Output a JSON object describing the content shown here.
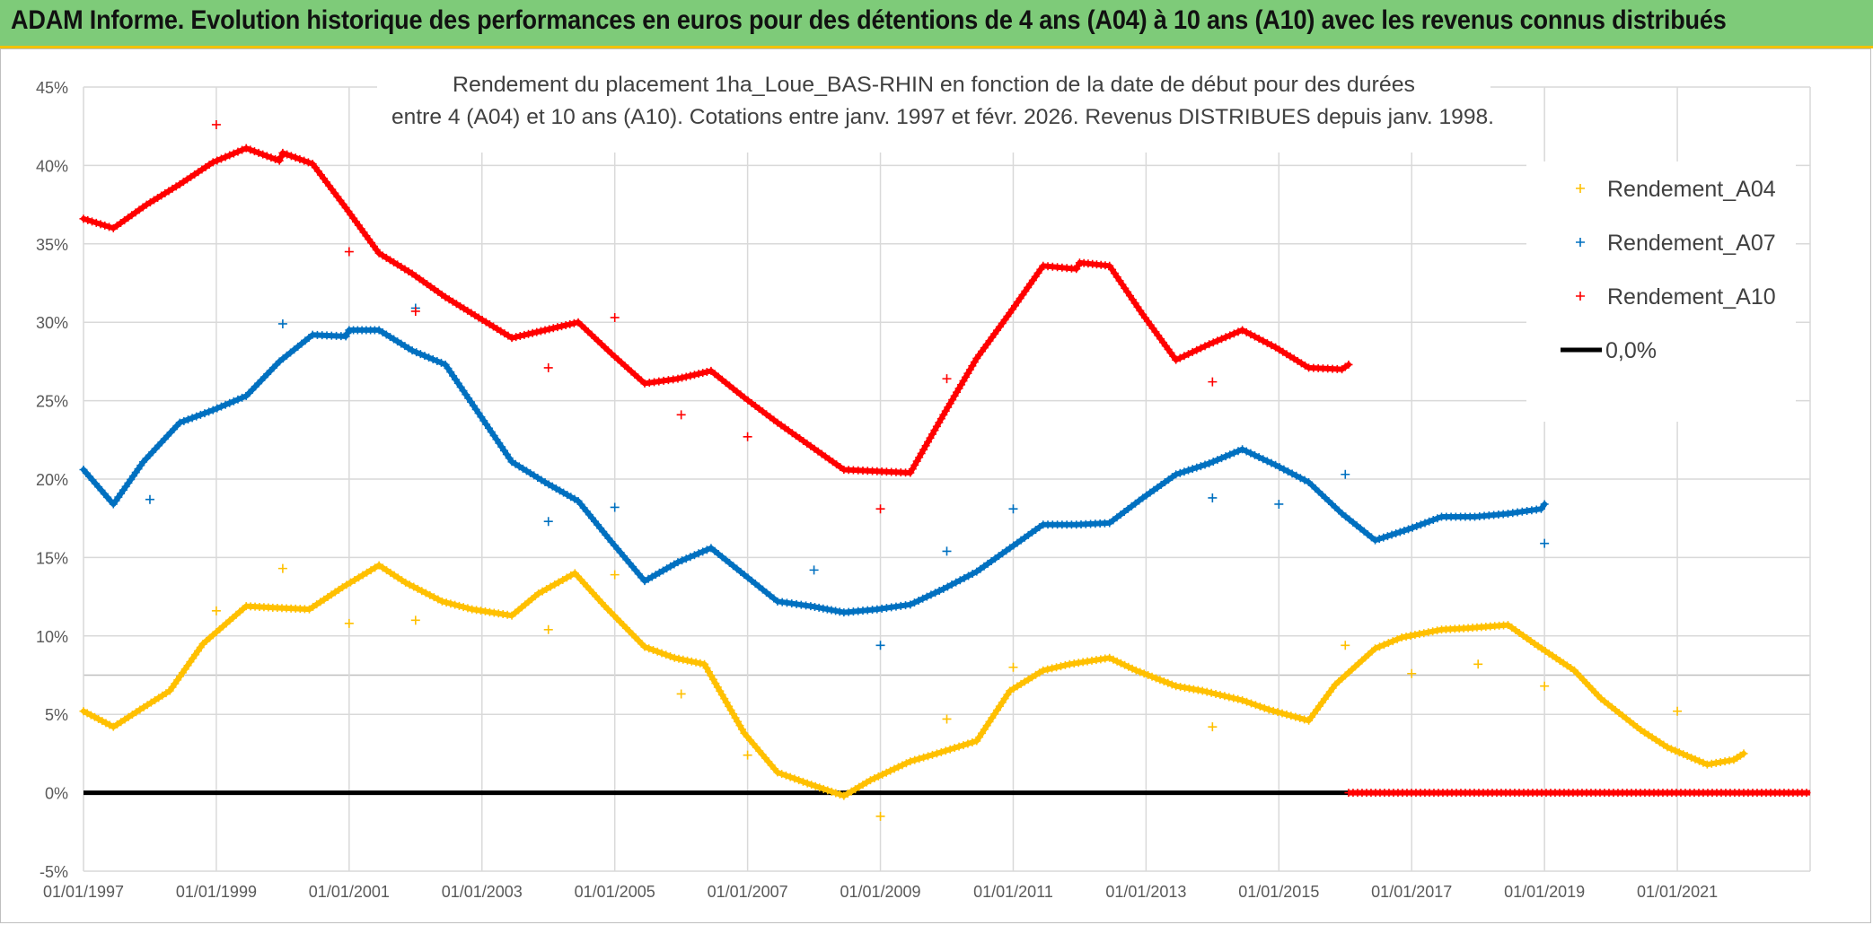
{
  "banner": {
    "title": "ADAM Informe. Evolution historique des performances en euros pour des détentions de 4 ans (A04) à 10 ans (A10) avec les revenus connus distribués"
  },
  "chart_data": {
    "type": "scatter",
    "title_line1": "Rendement du placement 1ha_Loue_BAS-RHIN en fonction de la date de début pour des durées",
    "title_line2": "entre 4 (A04) et 10 ans (A10). Cotations entre janv. 1997 et févr. 2026. Revenus DISTRIBUES depuis janv. 1998.",
    "xlabel": "",
    "ylabel": "",
    "x_unit": "year (decimal)",
    "xlim": [
      1997.0,
      2023.0
    ],
    "ylim": [
      -5,
      45
    ],
    "x_ticks": [
      {
        "value": 1997,
        "label": "01/01/1997"
      },
      {
        "value": 1999,
        "label": "01/01/1999"
      },
      {
        "value": 2001,
        "label": "01/01/2001"
      },
      {
        "value": 2003,
        "label": "01/01/2003"
      },
      {
        "value": 2005,
        "label": "01/01/2005"
      },
      {
        "value": 2007,
        "label": "01/01/2007"
      },
      {
        "value": 2009,
        "label": "01/01/2009"
      },
      {
        "value": 2011,
        "label": "01/01/2011"
      },
      {
        "value": 2013,
        "label": "01/01/2013"
      },
      {
        "value": 2015,
        "label": "01/01/2015"
      },
      {
        "value": 2017,
        "label": "01/01/2017"
      },
      {
        "value": 2019,
        "label": "01/01/2019"
      },
      {
        "value": 2021,
        "label": "01/01/2021"
      }
    ],
    "y_ticks": [
      {
        "value": 45,
        "label": "45%"
      },
      {
        "value": 40,
        "label": "40%"
      },
      {
        "value": 35,
        "label": "35%"
      },
      {
        "value": 30,
        "label": "30%"
      },
      {
        "value": 25,
        "label": "25%"
      },
      {
        "value": 20,
        "label": "20%"
      },
      {
        "value": 15,
        "label": "15%"
      },
      {
        "value": 10,
        "label": "10%"
      },
      {
        "value": 5,
        "label": "5%"
      },
      {
        "value": 0,
        "label": "0%"
      },
      {
        "value": -5,
        "label": "-5%"
      }
    ],
    "grid": true,
    "legend_position": "right",
    "series": [
      {
        "name": "Rendement_A04",
        "color": "#ffc000",
        "marker": "+",
        "line": [
          [
            1997.0,
            5.2
          ],
          [
            1997.45,
            4.2
          ],
          [
            1997.85,
            5.3
          ],
          [
            1998.3,
            6.5
          ],
          [
            1998.8,
            9.5
          ],
          [
            1999.45,
            11.9
          ],
          [
            1999.85,
            11.8
          ],
          [
            2000.4,
            11.7
          ],
          [
            2000.9,
            13.1
          ],
          [
            2001.45,
            14.5
          ],
          [
            2001.85,
            13.4
          ],
          [
            2002.4,
            12.2
          ],
          [
            2002.85,
            11.7
          ],
          [
            2003.45,
            11.3
          ],
          [
            2003.85,
            12.7
          ],
          [
            2004.4,
            14.0
          ],
          [
            2004.85,
            11.9
          ],
          [
            2005.45,
            9.3
          ],
          [
            2005.9,
            8.6
          ],
          [
            2006.35,
            8.2
          ],
          [
            2006.95,
            3.8
          ],
          [
            2007.45,
            1.3
          ],
          [
            2007.9,
            0.6
          ],
          [
            2008.45,
            -0.2
          ],
          [
            2008.85,
            0.8
          ],
          [
            2009.45,
            2.0
          ],
          [
            2009.85,
            2.5
          ],
          [
            2010.45,
            3.3
          ],
          [
            2010.95,
            6.5
          ],
          [
            2011.45,
            7.8
          ],
          [
            2011.85,
            8.2
          ],
          [
            2012.45,
            8.6
          ],
          [
            2012.85,
            7.8
          ],
          [
            2013.45,
            6.8
          ],
          [
            2013.85,
            6.5
          ],
          [
            2014.45,
            5.9
          ],
          [
            2014.85,
            5.3
          ],
          [
            2015.45,
            4.6
          ],
          [
            2015.85,
            6.9
          ],
          [
            2016.45,
            9.2
          ],
          [
            2016.85,
            9.9
          ],
          [
            2017.45,
            10.4
          ],
          [
            2017.85,
            10.5
          ],
          [
            2018.45,
            10.7
          ],
          [
            2018.85,
            9.5
          ],
          [
            2019.45,
            7.8
          ],
          [
            2019.85,
            6.0
          ],
          [
            2020.45,
            4.0
          ],
          [
            2020.85,
            2.9
          ],
          [
            2021.45,
            1.8
          ],
          [
            2021.85,
            2.1
          ],
          [
            2022.0,
            2.5
          ]
        ],
        "isolated": [
          [
            1999.0,
            11.6
          ],
          [
            2000.0,
            14.3
          ],
          [
            2001.0,
            10.8
          ],
          [
            2002.0,
            11.0
          ],
          [
            2004.0,
            10.4
          ],
          [
            2005.0,
            13.9
          ],
          [
            2006.0,
            6.3
          ],
          [
            2007.0,
            2.4
          ],
          [
            2009.0,
            -1.5
          ],
          [
            2010.0,
            4.7
          ],
          [
            2011.0,
            8.0
          ],
          [
            2014.0,
            4.2
          ],
          [
            2016.0,
            9.4
          ],
          [
            2017.0,
            7.6
          ],
          [
            2018.0,
            8.2
          ],
          [
            2019.0,
            6.8
          ],
          [
            2021.0,
            5.2
          ]
        ]
      },
      {
        "name": "Rendement_A07",
        "color": "#0070c0",
        "marker": "+",
        "line": [
          [
            1997.0,
            20.6
          ],
          [
            1997.45,
            18.4
          ],
          [
            1997.9,
            21.1
          ],
          [
            1998.45,
            23.6
          ],
          [
            1998.95,
            24.4
          ],
          [
            1999.45,
            25.3
          ],
          [
            1999.95,
            27.5
          ],
          [
            2000.45,
            29.2
          ],
          [
            2000.95,
            29.1
          ],
          [
            2001.0,
            29.5
          ],
          [
            2001.45,
            29.5
          ],
          [
            2001.95,
            28.2
          ],
          [
            2002.45,
            27.3
          ],
          [
            2002.95,
            24.2
          ],
          [
            2003.45,
            21.1
          ],
          [
            2003.95,
            19.8
          ],
          [
            2004.45,
            18.6
          ],
          [
            2004.95,
            16.0
          ],
          [
            2005.45,
            13.5
          ],
          [
            2005.95,
            14.7
          ],
          [
            2006.45,
            15.6
          ],
          [
            2006.95,
            13.9
          ],
          [
            2007.45,
            12.2
          ],
          [
            2007.95,
            11.9
          ],
          [
            2008.45,
            11.5
          ],
          [
            2008.95,
            11.7
          ],
          [
            2009.45,
            12.0
          ],
          [
            2009.95,
            13.0
          ],
          [
            2010.45,
            14.1
          ],
          [
            2010.95,
            15.6
          ],
          [
            2011.45,
            17.1
          ],
          [
            2011.95,
            17.1
          ],
          [
            2012.45,
            17.2
          ],
          [
            2012.95,
            18.8
          ],
          [
            2013.45,
            20.3
          ],
          [
            2013.95,
            21.0
          ],
          [
            2014.45,
            21.9
          ],
          [
            2014.95,
            20.9
          ],
          [
            2015.45,
            19.8
          ],
          [
            2015.95,
            17.8
          ],
          [
            2016.45,
            16.1
          ],
          [
            2016.95,
            16.8
          ],
          [
            2017.45,
            17.6
          ],
          [
            2017.95,
            17.6
          ],
          [
            2018.45,
            17.8
          ],
          [
            2018.95,
            18.1
          ],
          [
            2019.0,
            18.4
          ]
        ],
        "isolated": [
          [
            1998.0,
            18.7
          ],
          [
            2000.0,
            29.9
          ],
          [
            2002.0,
            30.9
          ],
          [
            2004.0,
            17.3
          ],
          [
            2005.0,
            18.2
          ],
          [
            2008.0,
            14.2
          ],
          [
            2009.0,
            9.4
          ],
          [
            2010.0,
            15.4
          ],
          [
            2011.0,
            18.1
          ],
          [
            2014.0,
            18.8
          ],
          [
            2015.0,
            18.4
          ],
          [
            2016.0,
            20.3
          ],
          [
            2019.0,
            15.9
          ]
        ]
      },
      {
        "name": "Rendement_A10",
        "color": "#ff0000",
        "marker": "+",
        "line": [
          [
            1997.0,
            36.6
          ],
          [
            1997.45,
            36.0
          ],
          [
            1997.95,
            37.5
          ],
          [
            1998.45,
            38.8
          ],
          [
            1998.95,
            40.2
          ],
          [
            1999.45,
            41.1
          ],
          [
            1999.95,
            40.3
          ],
          [
            2000.0,
            40.8
          ],
          [
            2000.45,
            40.1
          ],
          [
            2000.95,
            37.3
          ],
          [
            2001.45,
            34.4
          ],
          [
            2001.95,
            33.1
          ],
          [
            2002.45,
            31.6
          ],
          [
            2002.95,
            30.3
          ],
          [
            2003.45,
            29.0
          ],
          [
            2003.95,
            29.5
          ],
          [
            2004.45,
            30.0
          ],
          [
            2004.95,
            28.0
          ],
          [
            2005.45,
            26.1
          ],
          [
            2005.95,
            26.4
          ],
          [
            2006.45,
            26.9
          ],
          [
            2006.95,
            25.2
          ],
          [
            2007.45,
            23.6
          ],
          [
            2007.95,
            22.1
          ],
          [
            2008.45,
            20.6
          ],
          [
            2008.95,
            20.5
          ],
          [
            2009.45,
            20.4
          ],
          [
            2009.95,
            24.1
          ],
          [
            2010.45,
            27.7
          ],
          [
            2010.95,
            30.6
          ],
          [
            2011.45,
            33.6
          ],
          [
            2011.95,
            33.4
          ],
          [
            2012.0,
            33.8
          ],
          [
            2012.45,
            33.6
          ],
          [
            2012.95,
            30.5
          ],
          [
            2013.45,
            27.6
          ],
          [
            2013.95,
            28.6
          ],
          [
            2014.45,
            29.5
          ],
          [
            2014.95,
            28.4
          ],
          [
            2015.45,
            27.1
          ],
          [
            2015.95,
            27.0
          ],
          [
            2016.05,
            27.3
          ]
        ],
        "isolated": [
          [
            1999.0,
            42.6
          ],
          [
            2001.0,
            34.5
          ],
          [
            2002.0,
            30.7
          ],
          [
            2004.0,
            27.1
          ],
          [
            2005.0,
            30.3
          ],
          [
            2006.0,
            24.1
          ],
          [
            2007.0,
            22.7
          ],
          [
            2009.0,
            18.1
          ],
          [
            2010.0,
            26.4
          ],
          [
            2014.0,
            26.2
          ]
        ]
      },
      {
        "name": "0,0%",
        "color": "#000000",
        "marker": "line",
        "line": [
          [
            1997.0,
            0.0
          ],
          [
            2016.05,
            0.0
          ]
        ]
      }
    ],
    "annotations": [
      {
        "text": "red zero markers",
        "line": [
          [
            2016.05,
            0.0
          ],
          [
            2023.0,
            0.0
          ]
        ],
        "color": "#ff0000"
      }
    ]
  }
}
